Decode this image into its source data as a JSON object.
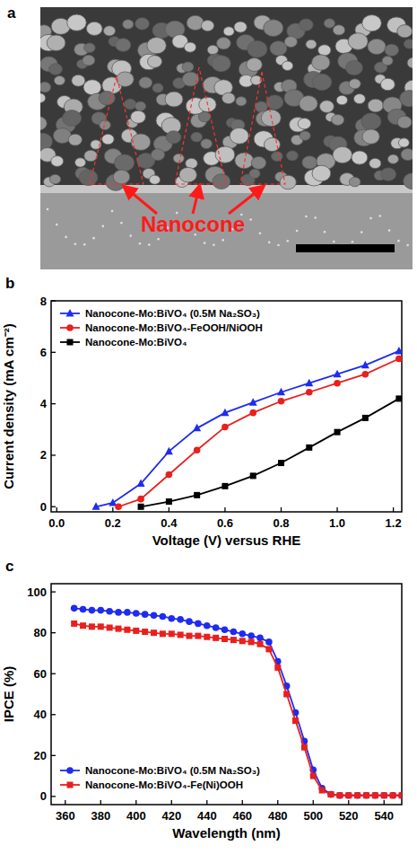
{
  "image_panel": {
    "panel_label": "a",
    "label": "Nanocone"
  },
  "chart_data": [
    {
      "type": "line",
      "panel_label": "b",
      "xlabel": "Voltage (V) versus RHE",
      "ylabel": "Current density (mA cm⁻²)",
      "xlim": [
        -0.02,
        1.23
      ],
      "ylim": [
        -0.2,
        8
      ],
      "xticks": [
        {
          "value": 0,
          "label": "0.0"
        },
        0.2,
        0.4,
        0.6,
        0.8,
        {
          "value": 1,
          "label": "1.0"
        },
        1.2
      ],
      "yticks": [
        0,
        2,
        4,
        6,
        8
      ],
      "legend": "top-left",
      "grid": false,
      "series": [
        {
          "name": "Nanocone-Mo:BiVO₄ (0.5M Na₂SO₃)",
          "color": "#1f2bf0",
          "marker": "triangle",
          "x": [
            0.14,
            0.2,
            0.3,
            0.4,
            0.5,
            0.6,
            0.7,
            0.8,
            0.9,
            1.0,
            1.1,
            1.22
          ],
          "values": [
            0,
            0.15,
            0.9,
            2.15,
            3.05,
            3.65,
            4.05,
            4.45,
            4.8,
            5.15,
            5.5,
            6.05
          ]
        },
        {
          "name": "Nanocone-Mo:BiVO₄-FeOOH/NiOOH",
          "color": "#e8201e",
          "marker": "circle",
          "x": [
            0.22,
            0.3,
            0.4,
            0.5,
            0.6,
            0.7,
            0.8,
            0.9,
            1.0,
            1.1,
            1.22
          ],
          "values": [
            0,
            0.3,
            1.25,
            2.2,
            3.1,
            3.65,
            4.1,
            4.45,
            4.8,
            5.15,
            5.75
          ]
        },
        {
          "name": "Nanocone-Mo:BiVO₄",
          "color": "#000000",
          "marker": "square",
          "x": [
            0.3,
            0.4,
            0.5,
            0.6,
            0.7,
            0.8,
            0.9,
            1.0,
            1.1,
            1.22
          ],
          "values": [
            0,
            0.2,
            0.45,
            0.8,
            1.2,
            1.7,
            2.3,
            2.9,
            3.45,
            4.2
          ]
        }
      ]
    },
    {
      "type": "line",
      "panel_label": "c",
      "xlabel": "Wavelength (nm)",
      "ylabel": "IPCE (%)",
      "xlim": [
        352,
        550
      ],
      "ylim": [
        -4,
        104
      ],
      "xticks": [
        360,
        380,
        400,
        420,
        440,
        460,
        480,
        500,
        520,
        540
      ],
      "yticks": [
        0,
        20,
        40,
        60,
        80,
        100
      ],
      "legend": "bottom-left",
      "grid": false,
      "series": [
        {
          "name": "Nanocone-Mo:BiVO₄ (0.5M Na₂SO₃)",
          "color": "#1f2bf0",
          "marker": "circle",
          "x": [
            365,
            370,
            375,
            380,
            385,
            390,
            395,
            400,
            405,
            410,
            415,
            420,
            425,
            430,
            435,
            440,
            445,
            450,
            455,
            460,
            465,
            470,
            475,
            480,
            485,
            490,
            495,
            500,
            505,
            510,
            515,
            520,
            525,
            530,
            535,
            540,
            545,
            550
          ],
          "values": [
            92,
            91.5,
            91,
            91,
            90.5,
            90,
            90,
            89.5,
            89,
            88.5,
            88,
            87,
            86.5,
            85.5,
            84.5,
            83.5,
            82.5,
            81.5,
            80.5,
            79.5,
            78.5,
            77.5,
            75.5,
            66,
            54,
            41,
            27,
            13,
            4,
            1,
            0.5,
            0.5,
            0.5,
            0.5,
            0.5,
            0.5,
            0.5,
            0.5
          ]
        },
        {
          "name": "Nanocone-Mo:BiVO₄-Fe(Ni)OOH",
          "color": "#e8201e",
          "marker": "square",
          "x": [
            365,
            370,
            375,
            380,
            385,
            390,
            395,
            400,
            405,
            410,
            415,
            420,
            425,
            430,
            435,
            440,
            445,
            450,
            455,
            460,
            465,
            470,
            475,
            480,
            485,
            490,
            495,
            500,
            505,
            510,
            515,
            520,
            525,
            530,
            535,
            540,
            545,
            550
          ],
          "values": [
            84.5,
            83.5,
            83,
            83,
            82.5,
            82,
            81.5,
            81,
            80.5,
            80,
            79.5,
            79.5,
            79,
            78.5,
            78.5,
            78,
            77.5,
            77,
            76.5,
            76,
            75.5,
            74.5,
            72,
            63,
            50,
            37,
            24,
            10,
            3,
            1,
            0.5,
            0.5,
            0.5,
            0.5,
            0.5,
            0.5,
            0.5,
            0.5
          ]
        }
      ]
    }
  ]
}
